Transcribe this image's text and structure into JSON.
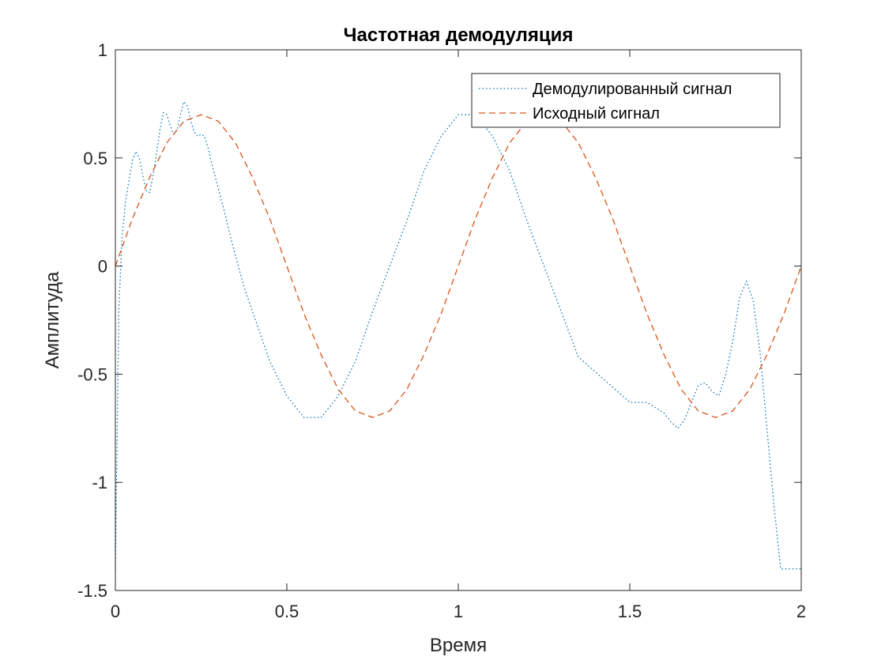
{
  "chart_data": {
    "type": "line",
    "title": "Частотная демодуляция",
    "xlabel": "Время",
    "ylabel": "Амплитуда",
    "xlim": [
      0,
      2
    ],
    "ylim": [
      -1.5,
      1
    ],
    "x_ticks": [
      "0",
      "0.5",
      "1",
      "1.5",
      "2"
    ],
    "y_ticks": [
      "1",
      "0.5",
      "0",
      "-0.5",
      "-1",
      "-1.5"
    ],
    "x_tick_values": [
      0,
      0.5,
      1,
      1.5,
      2
    ],
    "y_tick_values": [
      1,
      0.5,
      0,
      -0.5,
      -1,
      -1.5
    ],
    "grid": false,
    "legend_position": "top-right",
    "series": [
      {
        "name": "Демодулированный сигнал",
        "style": "dotted",
        "color": "#0072BD",
        "x": [
          0,
          0.005,
          0.01,
          0.02,
          0.03,
          0.04,
          0.05,
          0.06,
          0.07,
          0.08,
          0.09,
          0.1,
          0.11,
          0.12,
          0.13,
          0.14,
          0.15,
          0.16,
          0.17,
          0.18,
          0.19,
          0.2,
          0.21,
          0.22,
          0.23,
          0.24,
          0.25,
          0.26,
          0.27,
          0.28,
          0.29,
          0.3,
          0.31,
          0.32,
          0.33,
          0.34,
          0.35,
          0.36,
          0.38,
          0.4,
          0.45,
          0.5,
          0.55,
          0.6,
          0.65,
          0.7,
          0.75,
          0.8,
          0.85,
          0.9,
          0.95,
          1.0,
          1.05,
          1.1,
          1.15,
          1.2,
          1.25,
          1.3,
          1.35,
          1.4,
          1.45,
          1.5,
          1.55,
          1.6,
          1.62,
          1.64,
          1.66,
          1.68,
          1.7,
          1.72,
          1.74,
          1.76,
          1.78,
          1.8,
          1.82,
          1.84,
          1.86,
          1.88,
          1.9,
          1.92,
          1.94,
          1.96,
          1.98,
          1.99,
          1.995,
          2.0
        ],
        "y": [
          -1.4,
          -0.8,
          -0.2,
          0.15,
          0.3,
          0.4,
          0.49,
          0.53,
          0.5,
          0.42,
          0.35,
          0.34,
          0.42,
          0.52,
          0.63,
          0.71,
          0.7,
          0.65,
          0.61,
          0.63,
          0.7,
          0.76,
          0.74,
          0.67,
          0.62,
          0.6,
          0.61,
          0.6,
          0.55,
          0.48,
          0.42,
          0.36,
          0.3,
          0.24,
          0.17,
          0.11,
          0.05,
          -0.01,
          -0.12,
          -0.21,
          -0.44,
          -0.6,
          -0.7,
          -0.7,
          -0.6,
          -0.44,
          -0.21,
          0.0,
          0.21,
          0.44,
          0.6,
          0.7,
          0.7,
          0.6,
          0.44,
          0.21,
          0.0,
          -0.21,
          -0.42,
          -0.49,
          -0.56,
          -0.63,
          -0.63,
          -0.68,
          -0.72,
          -0.75,
          -0.71,
          -0.63,
          -0.55,
          -0.54,
          -0.58,
          -0.6,
          -0.5,
          -0.35,
          -0.15,
          -0.07,
          -0.16,
          -0.4,
          -0.75,
          -1.1,
          -1.4,
          -1.4,
          -1.4,
          -1.4,
          -1.4,
          -1.4
        ]
      },
      {
        "name": "Исходный сигнал",
        "style": "dashed",
        "color": "#D95319",
        "x": [
          0,
          0.05,
          0.1,
          0.15,
          0.2,
          0.25,
          0.3,
          0.35,
          0.4,
          0.45,
          0.5,
          0.55,
          0.6,
          0.65,
          0.7,
          0.75,
          0.8,
          0.85,
          0.9,
          0.95,
          1.0,
          1.05,
          1.1,
          1.15,
          1.2,
          1.25,
          1.3,
          1.35,
          1.4,
          1.45,
          1.5,
          1.55,
          1.6,
          1.65,
          1.7,
          1.75,
          1.8,
          1.85,
          1.9,
          1.95,
          2.0
        ],
        "y": [
          0,
          0.22,
          0.41,
          0.57,
          0.67,
          0.7,
          0.67,
          0.57,
          0.41,
          0.22,
          0,
          -0.22,
          -0.41,
          -0.57,
          -0.67,
          -0.7,
          -0.67,
          -0.57,
          -0.41,
          -0.22,
          0,
          0.22,
          0.41,
          0.57,
          0.67,
          0.7,
          0.67,
          0.57,
          0.41,
          0.22,
          0,
          -0.22,
          -0.41,
          -0.57,
          -0.67,
          -0.7,
          -0.67,
          -0.57,
          -0.41,
          -0.22,
          0
        ]
      }
    ]
  }
}
